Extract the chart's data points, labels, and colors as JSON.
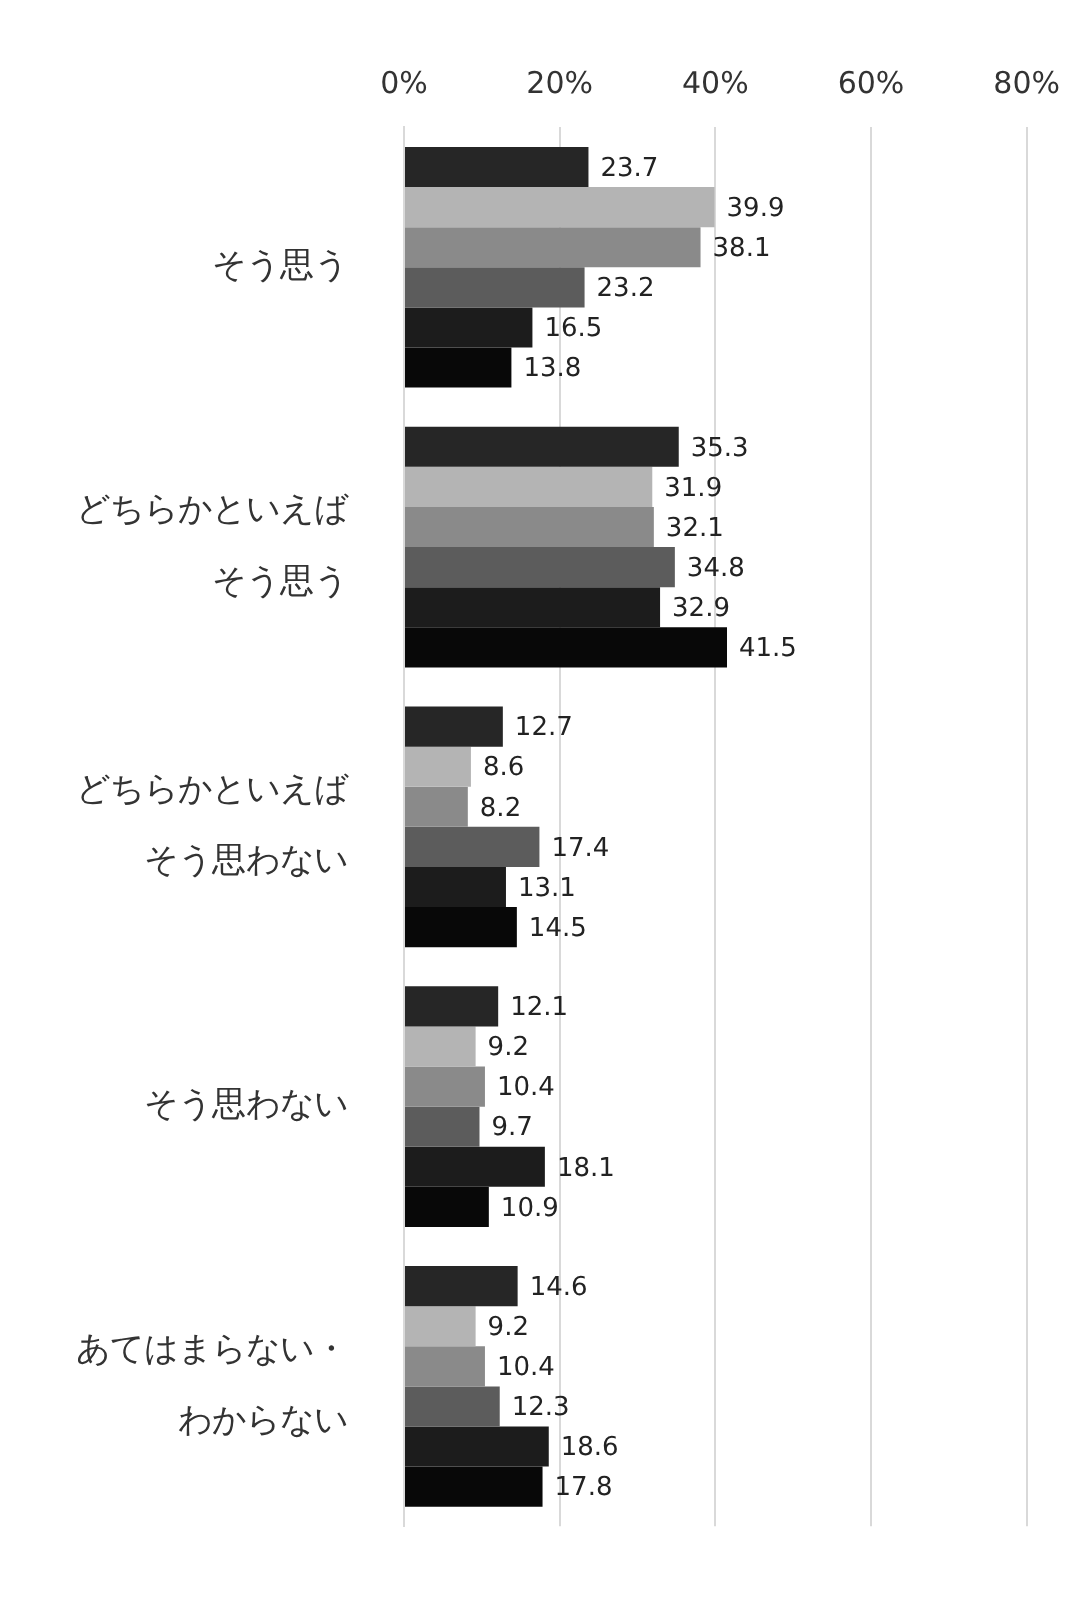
{
  "chart_data": {
    "type": "bar",
    "orientation": "horizontal",
    "categories": [
      "そう思う",
      "どちらかといえばそう思う",
      "どちらかといえばそう思わない",
      "そう思わない",
      "あてはまらない・わからない"
    ],
    "series": [
      {
        "color": "#262626",
        "values": [
          23.7,
          35.3,
          12.7,
          12.1,
          14.6
        ]
      },
      {
        "color": "#b4b4b4",
        "values": [
          39.9,
          31.9,
          8.6,
          9.2,
          9.2
        ]
      },
      {
        "color": "#8a8a8a",
        "values": [
          38.1,
          32.1,
          8.2,
          10.4,
          10.4
        ]
      },
      {
        "color": "#5c5c5c",
        "values": [
          23.2,
          34.8,
          17.4,
          9.7,
          12.3
        ]
      },
      {
        "color": "#1c1c1c",
        "values": [
          16.5,
          32.9,
          13.1,
          18.1,
          18.6
        ]
      },
      {
        "color": "#080808",
        "values": [
          13.8,
          41.5,
          14.5,
          10.9,
          17.8
        ]
      }
    ],
    "xlim": [
      0,
      80
    ],
    "xticks": [
      {
        "value": 0,
        "label": "0%"
      },
      {
        "value": 20,
        "label": "20%"
      },
      {
        "value": 40,
        "label": "40%"
      },
      {
        "value": 60,
        "label": "60%"
      },
      {
        "value": 80,
        "label": "80%"
      }
    ],
    "grid": "x",
    "legend": false,
    "data_labels": true
  }
}
